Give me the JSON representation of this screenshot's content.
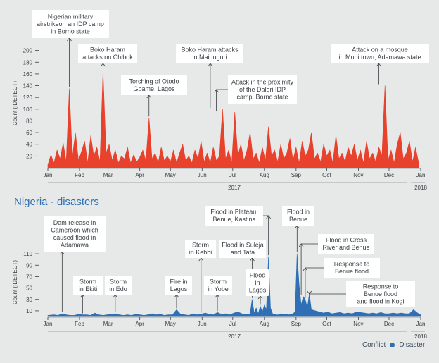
{
  "page": {
    "section_title": "Nigeria - disasters"
  },
  "legend": {
    "items": [
      {
        "label": "Conflict",
        "color": "#e8412c"
      },
      {
        "label": "Disaster",
        "color": "#2e6fb5"
      }
    ]
  },
  "chart_data": [
    {
      "type": "area",
      "title": "",
      "ylabel": "Count (IDETECT)",
      "xlabel": "2017",
      "year_end_label": "2018",
      "ylim": [
        0,
        220
      ],
      "yticks": [
        20,
        40,
        60,
        80,
        100,
        120,
        140,
        160,
        180,
        200
      ],
      "xlim": [
        0,
        365
      ],
      "months": [
        {
          "label": "Jan",
          "day": 0
        },
        {
          "label": "Feb",
          "day": 31
        },
        {
          "label": "Mar",
          "day": 59
        },
        {
          "label": "Apr",
          "day": 90
        },
        {
          "label": "May",
          "day": 120
        },
        {
          "label": "Jun",
          "day": 151
        },
        {
          "label": "Jul",
          "day": 181
        },
        {
          "label": "Aug",
          "day": 212
        },
        {
          "label": "Sep",
          "day": 243
        },
        {
          "label": "Oct",
          "day": 273
        },
        {
          "label": "Nov",
          "day": 304
        },
        {
          "label": "Dec",
          "day": 334
        },
        {
          "label": "Jan",
          "day": 365
        }
      ],
      "color": "#e8412c",
      "series": [
        {
          "x": [
            0,
            3,
            6,
            9,
            12,
            15,
            18,
            21,
            24,
            27,
            30,
            33,
            36,
            39,
            42,
            45,
            48,
            51,
            54,
            57,
            60,
            63,
            66,
            69,
            72,
            75,
            78,
            81,
            84,
            87,
            90,
            93,
            96,
            99,
            102,
            105,
            108,
            111,
            114,
            117,
            120,
            123,
            126,
            129,
            132,
            135,
            138,
            141,
            144,
            147,
            150,
            153,
            156,
            159,
            162,
            165,
            168,
            171,
            174,
            177,
            180,
            183,
            186,
            189,
            192,
            195,
            198,
            201,
            204,
            207,
            210,
            213,
            216,
            219,
            222,
            225,
            228,
            231,
            234,
            237,
            240,
            243,
            246,
            249,
            252,
            255,
            258,
            261,
            264,
            267,
            270,
            273,
            276,
            279,
            282,
            285,
            288,
            291,
            294,
            297,
            300,
            303,
            306,
            309,
            312,
            315,
            318,
            321,
            324,
            327,
            330,
            333,
            336,
            339,
            342,
            345,
            348,
            351,
            354,
            357,
            360,
            363
          ],
          "values": [
            5,
            22,
            8,
            30,
            15,
            42,
            10,
            135,
            18,
            60,
            12,
            28,
            45,
            8,
            55,
            20,
            35,
            10,
            165,
            25,
            40,
            12,
            30,
            8,
            20,
            15,
            35,
            8,
            22,
            10,
            18,
            30,
            12,
            85,
            15,
            25,
            8,
            35,
            12,
            20,
            10,
            30,
            8,
            25,
            40,
            12,
            20,
            8,
            30,
            15,
            45,
            10,
            25,
            8,
            35,
            12,
            20,
            100,
            15,
            30,
            8,
            95,
            20,
            40,
            12,
            30,
            60,
            15,
            25,
            8,
            35,
            12,
            70,
            20,
            30,
            10,
            40,
            15,
            25,
            50,
            12,
            35,
            8,
            45,
            20,
            30,
            60,
            15,
            25,
            10,
            40,
            20,
            30,
            8,
            55,
            15,
            25,
            10,
            35,
            20,
            40,
            12,
            30,
            8,
            45,
            15,
            25,
            10,
            35,
            20,
            140,
            12,
            30,
            8,
            40,
            60,
            15,
            25,
            45,
            10,
            35,
            8
          ],
          "name": ""
        }
      ],
      "annotations": [
        {
          "text": "Nigerian military\nairstrikeon an IDP camp\nin Borno state",
          "day": 21,
          "value": 135
        },
        {
          "text": "Boko Haram\nattacks on Chibok",
          "day": 54,
          "value": 165
        },
        {
          "text": "Torching of Otodo\nGbame, Lagos",
          "day": 99,
          "value": 85
        },
        {
          "text": "Boko Haram attacks\nin Maiduguri",
          "day": 159,
          "value": 100
        },
        {
          "text": "Attack in the proximity\nof the Dalori IDP\ncamp, Borno state",
          "day": 165,
          "value": 95
        },
        {
          "text": "Attack on a mosque\nin Mubi town, Adamawa state",
          "day": 324,
          "value": 140
        }
      ]
    },
    {
      "type": "area",
      "title": "Nigeria - disasters",
      "ylabel": "Count (IDETECT)",
      "xlabel": "2017",
      "year_end_label": "2018",
      "ylim": [
        0,
        120
      ],
      "yticks": [
        10,
        30,
        50,
        70,
        90,
        110
      ],
      "xlim": [
        0,
        365
      ],
      "months": [
        {
          "label": "Jan",
          "day": 0
        },
        {
          "label": "Feb",
          "day": 31
        },
        {
          "label": "Mar",
          "day": 59
        },
        {
          "label": "Apr",
          "day": 90
        },
        {
          "label": "May",
          "day": 120
        },
        {
          "label": "Jun",
          "day": 151
        },
        {
          "label": "Jul",
          "day": 181
        },
        {
          "label": "Aug",
          "day": 212
        },
        {
          "label": "Sep",
          "day": 243
        },
        {
          "label": "Oct",
          "day": 273
        },
        {
          "label": "Nov",
          "day": 304
        },
        {
          "label": "Dec",
          "day": 334
        },
        {
          "label": "Jan",
          "day": 365
        }
      ],
      "color": "#2e6fb5",
      "series": [
        {
          "x": [
            0,
            6,
            10,
            14,
            18,
            22,
            26,
            30,
            34,
            38,
            42,
            46,
            50,
            54,
            58,
            62,
            66,
            70,
            74,
            78,
            82,
            86,
            90,
            94,
            98,
            102,
            106,
            110,
            114,
            118,
            122,
            126,
            130,
            134,
            138,
            142,
            146,
            150,
            154,
            158,
            162,
            166,
            170,
            174,
            178,
            182,
            186,
            190,
            194,
            198,
            200,
            202,
            204,
            206,
            208,
            210,
            212,
            214,
            216,
            218,
            220,
            222,
            224,
            226,
            228,
            232,
            236,
            240,
            242,
            244,
            246,
            248,
            250,
            252,
            254,
            256,
            258,
            262,
            266,
            270,
            274,
            278,
            282,
            286,
            290,
            294,
            298,
            302,
            306,
            310,
            314,
            318,
            322,
            326,
            330,
            334,
            338,
            342,
            346,
            350,
            354,
            358,
            362,
            365
          ],
          "values": [
            2,
            3,
            2,
            5,
            3,
            2,
            2,
            4,
            3,
            3,
            2,
            6,
            3,
            2,
            3,
            4,
            5,
            3,
            2,
            3,
            2,
            4,
            3,
            2,
            3,
            5,
            3,
            4,
            2,
            3,
            3,
            12,
            4,
            3,
            2,
            5,
            3,
            4,
            6,
            4,
            3,
            7,
            4,
            5,
            3,
            6,
            8,
            5,
            4,
            5,
            30,
            6,
            15,
            5,
            18,
            8,
            20,
            12,
            105,
            15,
            5,
            4,
            3,
            3,
            5,
            4,
            3,
            5,
            8,
            110,
            55,
            20,
            35,
            30,
            15,
            40,
            12,
            10,
            8,
            6,
            8,
            5,
            6,
            7,
            5,
            6,
            5,
            8,
            7,
            6,
            5,
            6,
            5,
            7,
            5,
            5,
            6,
            5,
            6,
            5,
            5,
            12,
            6,
            3
          ],
          "name": ""
        }
      ],
      "annotations": [
        {
          "text": "Dam release in\nCameroon which\ncaused flood in\nAdamawa",
          "day": 14,
          "value": 5
        },
        {
          "text": "Storm\nin Ekiti",
          "day": 34,
          "value": 3
        },
        {
          "text": "Storm\nin Edo",
          "day": 66,
          "value": 5
        },
        {
          "text": "Fire in\nLagos",
          "day": 126,
          "value": 12
        },
        {
          "text": "Storm\nin Kebbi",
          "day": 150,
          "value": 4
        },
        {
          "text": "Storm\nin Yobe",
          "day": 166,
          "value": 7
        },
        {
          "text": "Flood in Suleja\nand Tafa",
          "day": 200,
          "value": 30
        },
        {
          "text": "Flood\nin\nLagos",
          "day": 208,
          "value": 18
        },
        {
          "text": "Flood in Plateau,\nBenue, Kastina",
          "day": 216,
          "value": 105
        },
        {
          "text": "Flood in\nBenue",
          "day": 244,
          "value": 110
        },
        {
          "text": "Flood in Cross\nRiver and Benue",
          "day": 248,
          "value": 35
        },
        {
          "text": "Response to\nBenue flood",
          "day": 252,
          "value": 30
        },
        {
          "text": "Response to\nBenue flood\nand flood in Kogi",
          "day": 256,
          "value": 40
        }
      ]
    }
  ]
}
